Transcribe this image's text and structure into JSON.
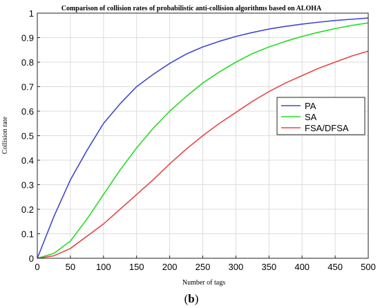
{
  "chart_data": {
    "type": "line",
    "title": "Comparison of collision rates of probabilistic anti-collision algorithms based on ALOHA",
    "xlabel": "Number of tags",
    "ylabel": "Collision rate",
    "xlim": [
      0,
      500
    ],
    "ylim": [
      0,
      1
    ],
    "x_ticks": [
      "0",
      "50",
      "100",
      "150",
      "200",
      "250",
      "300",
      "350",
      "400",
      "450",
      "500"
    ],
    "y_ticks": [
      "0",
      "0.1",
      "0.2",
      "0.3",
      "0.4",
      "0.5",
      "0.6",
      "0.7",
      "0.8",
      "0.9",
      "1"
    ],
    "grid": true,
    "legend_position": "right",
    "x": [
      0,
      25,
      50,
      75,
      100,
      125,
      150,
      175,
      200,
      225,
      250,
      275,
      300,
      325,
      350,
      375,
      400,
      425,
      450,
      475,
      500
    ],
    "series": [
      {
        "name": "PA",
        "color": "#3f48cc",
        "values": [
          0,
          0.17,
          0.32,
          0.44,
          0.55,
          0.63,
          0.7,
          0.75,
          0.795,
          0.833,
          0.862,
          0.885,
          0.905,
          0.921,
          0.935,
          0.946,
          0.955,
          0.963,
          0.97,
          0.975,
          0.98
        ]
      },
      {
        "name": "SA",
        "color": "#22dd22",
        "values": [
          0,
          0.02,
          0.07,
          0.16,
          0.26,
          0.36,
          0.45,
          0.53,
          0.6,
          0.66,
          0.715,
          0.76,
          0.8,
          0.835,
          0.862,
          0.885,
          0.905,
          0.922,
          0.937,
          0.95,
          0.96
        ]
      },
      {
        "name": "FSA/DFSA",
        "color": "#e64646",
        "values": [
          0,
          0.01,
          0.04,
          0.09,
          0.14,
          0.2,
          0.26,
          0.32,
          0.385,
          0.445,
          0.5,
          0.55,
          0.595,
          0.64,
          0.68,
          0.715,
          0.745,
          0.775,
          0.8,
          0.825,
          0.845
        ]
      }
    ]
  },
  "caption": {
    "prefix": "(",
    "letter": "b",
    "suffix": ")"
  }
}
